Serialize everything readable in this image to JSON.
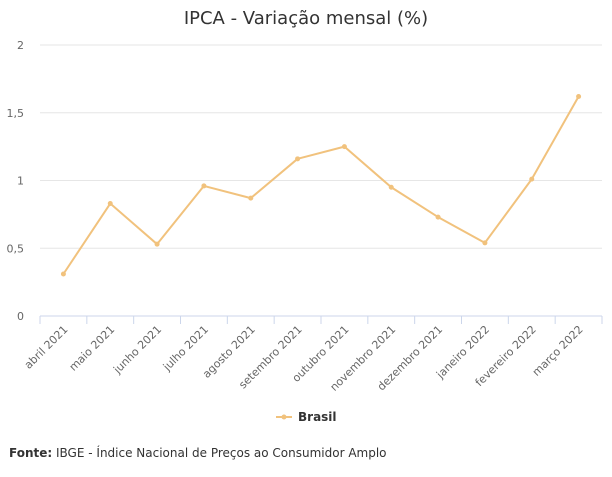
{
  "chart_data": {
    "type": "line",
    "title": "IPCA - Variação mensal (%)",
    "categories": [
      "abril 2021",
      "maio 2021",
      "junho 2021",
      "julho 2021",
      "agosto 2021",
      "setembro 2021",
      "outubro 2021",
      "novembro 2021",
      "dezembro 2021",
      "janeiro 2022",
      "fevereiro 2022",
      "março 2022"
    ],
    "series": [
      {
        "name": "Brasil",
        "values": [
          0.31,
          0.83,
          0.53,
          0.96,
          0.87,
          1.16,
          1.25,
          0.95,
          0.73,
          0.54,
          1.01,
          1.62
        ]
      }
    ],
    "ylim": [
      0,
      2
    ],
    "yticks": [
      0,
      0.5,
      1,
      1.5,
      2
    ],
    "ytick_labels": [
      "0",
      "0,5",
      "1",
      "1,5",
      "2"
    ],
    "grid": true,
    "legend_placement": "bottom-center",
    "line_color": "#f1c27d"
  },
  "source": {
    "label": "Fonte:",
    "text": "IBGE - Índice Nacional de Preços ao Consumidor Amplo"
  }
}
